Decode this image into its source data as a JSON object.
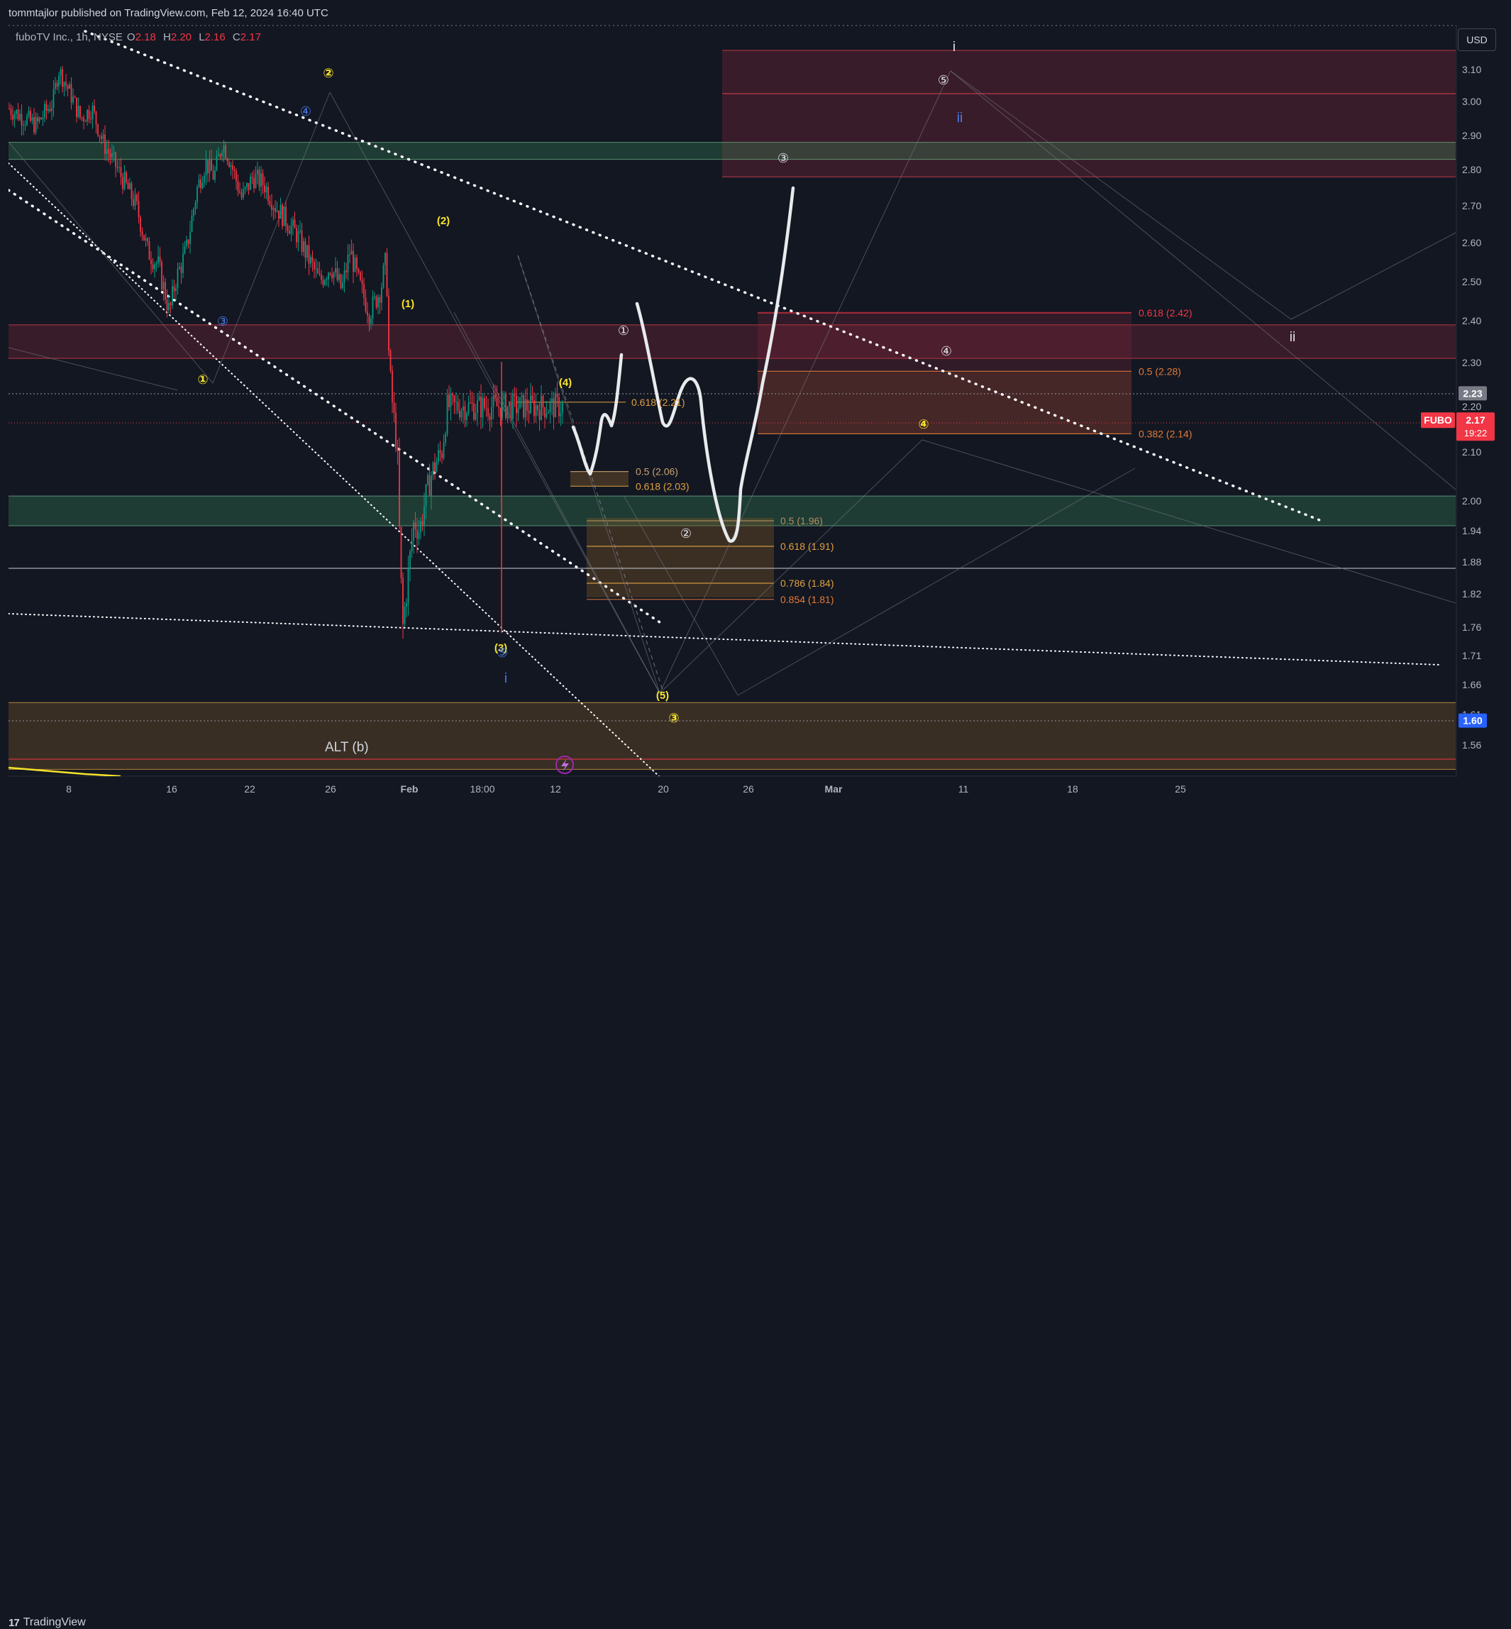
{
  "header": {
    "publisher_text": "tommtajlor published on TradingView.com, Feb 12, 2024 16:40 UTC"
  },
  "legend": {
    "symbol": "fuboTV Inc., 1h, NYSE",
    "open_label": "O",
    "open": "2.18",
    "high_label": "H",
    "high": "2.20",
    "low_label": "L",
    "low": "2.16",
    "close_label": "C",
    "close": "2.17"
  },
  "currency": "USD",
  "footer": {
    "logo_text": "TradingView",
    "logo_mark": "17"
  },
  "colors": {
    "background": "#131722",
    "up": "#089981",
    "down": "#f23645",
    "wave_yellow": "#f7e32a",
    "wave_blue": "#4a7cf0",
    "wave_white": "#e0e3eb",
    "fib_orange": "#e07b39",
    "fib_red": "#f23645",
    "accent_blue": "#2962ff"
  },
  "chart_data": {
    "type": "candlestick",
    "timeframe": "1h",
    "x_tick_labels": [
      "8",
      "16",
      "22",
      "26",
      "Feb",
      "18:00",
      "12",
      "20",
      "26",
      "Mar",
      "11",
      "18",
      "25"
    ],
    "y_tick_labels": [
      "3.10",
      "3.00",
      "2.90",
      "2.80",
      "2.70",
      "2.60",
      "2.50",
      "2.40",
      "2.30",
      "2.20",
      "2.10",
      "2.00",
      "1.94",
      "1.88",
      "1.82",
      "1.76",
      "1.71",
      "1.66",
      "1.61",
      "1.56"
    ],
    "ylim": [
      1.51,
      3.16
    ],
    "price_markers": [
      {
        "label": "2.23",
        "value": 2.23,
        "style": "gray"
      },
      {
        "label": "FUBO",
        "value": 2.17,
        "style": "red",
        "time": "19:22",
        "price": "2.17"
      },
      {
        "label": "1.60",
        "value": 1.6,
        "style": "blue"
      }
    ],
    "price_path": [
      [
        0,
        2.98
      ],
      [
        0.02,
        2.96
      ],
      [
        0.05,
        2.93
      ],
      [
        0.08,
        3.0
      ],
      [
        0.09,
        3.1
      ],
      [
        0.11,
        3.03
      ],
      [
        0.13,
        2.95
      ],
      [
        0.15,
        2.98
      ],
      [
        0.17,
        2.88
      ],
      [
        0.19,
        2.82
      ],
      [
        0.21,
        2.76
      ],
      [
        0.23,
        2.7
      ],
      [
        0.25,
        2.58
      ],
      [
        0.27,
        2.54
      ],
      [
        0.28,
        2.48
      ],
      [
        0.29,
        2.42
      ],
      [
        0.3,
        2.5
      ],
      [
        0.32,
        2.58
      ],
      [
        0.34,
        2.75
      ],
      [
        0.355,
        2.82
      ],
      [
        0.37,
        2.78
      ],
      [
        0.385,
        2.88
      ],
      [
        0.4,
        2.82
      ],
      [
        0.42,
        2.72
      ],
      [
        0.44,
        2.78
      ],
      [
        0.46,
        2.76
      ],
      [
        0.48,
        2.7
      ],
      [
        0.5,
        2.66
      ],
      [
        0.52,
        2.62
      ],
      [
        0.54,
        2.56
      ],
      [
        0.56,
        2.5
      ],
      [
        0.58,
        2.54
      ],
      [
        0.6,
        2.48
      ],
      [
        0.615,
        2.58
      ],
      [
        0.63,
        2.5
      ],
      [
        0.65,
        2.42
      ],
      [
        0.67,
        2.48
      ],
      [
        0.68,
        2.56
      ],
      [
        0.685,
        2.3
      ],
      [
        0.69,
        2.22
      ],
      [
        0.7,
        2.1
      ],
      [
        0.705,
        1.88
      ],
      [
        0.71,
        1.76
      ],
      [
        0.72,
        1.86
      ],
      [
        0.73,
        1.96
      ],
      [
        0.74,
        1.94
      ],
      [
        0.75,
        2.0
      ],
      [
        0.76,
        2.05
      ],
      [
        0.77,
        2.08
      ],
      [
        0.78,
        2.1
      ],
      [
        0.79,
        2.2
      ]
    ],
    "zones": [
      {
        "label": "",
        "top": 3.16,
        "bottom": 2.78,
        "color": "red"
      },
      {
        "label": "",
        "top": 2.88,
        "bottom": 2.83,
        "color": "green"
      },
      {
        "label": "",
        "top": 2.39,
        "bottom": 2.31,
        "color": "red"
      },
      {
        "label": "",
        "top": 2.01,
        "bottom": 1.95,
        "color": "green"
      },
      {
        "label": "ALT (b)",
        "top": 1.63,
        "bottom": 1.52,
        "color": "orange"
      }
    ],
    "fib_levels": [
      {
        "label": "0.618 (2.42)",
        "value": 2.42,
        "color": "#f23645"
      },
      {
        "label": "0.5 (2.28)",
        "value": 2.28,
        "color": "#e07b39"
      },
      {
        "label": "0.382 (2.14)",
        "value": 2.14,
        "color": "#e07b39"
      },
      {
        "label": "0.618 (2.21)",
        "value": 2.21,
        "color": "#e0a040"
      },
      {
        "label": "0.5 (2.06)",
        "value": 2.06,
        "color": "#c8a070"
      },
      {
        "label": "0.618 (2.03)",
        "value": 2.03,
        "color": "#e0a040"
      },
      {
        "label": "0.5 (1.96)",
        "value": 1.96,
        "color": "#b09060"
      },
      {
        "label": "0.618 (1.91)",
        "value": 1.91,
        "color": "#e0a040"
      },
      {
        "label": "0.786 (1.84)",
        "value": 1.84,
        "color": "#e0a040"
      },
      {
        "label": "0.854 (1.81)",
        "value": 1.81,
        "color": "#e07b39"
      }
    ],
    "wave_labels": [
      {
        "text": "②",
        "color": "yellow"
      },
      {
        "text": "④",
        "color": "blue"
      },
      {
        "text": "(2)",
        "color": "yellow"
      },
      {
        "text": "(1)",
        "color": "yellow"
      },
      {
        "text": "③",
        "color": "blue"
      },
      {
        "text": "①",
        "color": "yellow"
      },
      {
        "text": "(4)",
        "color": "yellow"
      },
      {
        "text": "(3)",
        "color": "yellow"
      },
      {
        "text": "⑤",
        "color": "blue"
      },
      {
        "text": "i",
        "color": "blue"
      },
      {
        "text": "(5)",
        "color": "yellow"
      },
      {
        "text": "③",
        "color": "yellow"
      },
      {
        "text": "①",
        "color": "white"
      },
      {
        "text": "②",
        "color": "white"
      },
      {
        "text": "③",
        "color": "white"
      },
      {
        "text": "④",
        "color": "white"
      },
      {
        "text": "⑤",
        "color": "white"
      },
      {
        "text": "i",
        "color": "white"
      },
      {
        "text": "ii",
        "color": "blue"
      },
      {
        "text": "ii",
        "color": "white"
      },
      {
        "text": "④",
        "color": "yellow"
      }
    ],
    "grid": false
  }
}
